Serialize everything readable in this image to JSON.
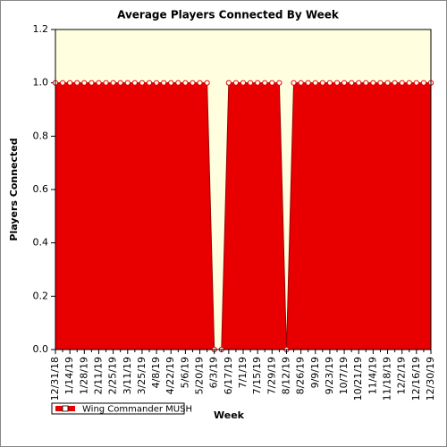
{
  "chart_data": {
    "type": "area",
    "title": "Average Players Connected By Week",
    "x_label": "Week",
    "y_label": "Players Connected",
    "categories": [
      "12/31/18",
      null,
      "1/14/19",
      null,
      "1/28/19",
      null,
      "2/11/19",
      null,
      "2/25/19",
      null,
      "3/11/19",
      null,
      "3/25/19",
      null,
      "4/8/19",
      null,
      "4/22/19",
      null,
      "5/6/19",
      null,
      "5/20/19",
      null,
      "6/3/19",
      null,
      "6/17/19",
      null,
      "7/1/19",
      null,
      "7/15/19",
      null,
      "7/29/19",
      null,
      "8/12/19",
      null,
      "8/26/19",
      null,
      "9/9/19",
      null,
      "9/23/19",
      null,
      "10/7/19",
      null,
      "10/21/19",
      null,
      "11/4/19",
      null,
      "11/18/19",
      null,
      "12/2/19",
      null,
      "12/16/19",
      null,
      "12/30/19"
    ],
    "series": [
      {
        "name": "Wing Commander MUSH",
        "color": "#e80000",
        "values": [
          1,
          1,
          1,
          1,
          1,
          1,
          1,
          1,
          1,
          1,
          1,
          1,
          1,
          1,
          1,
          1,
          1,
          1,
          1,
          1,
          1,
          1,
          0,
          0,
          1,
          1,
          1,
          1,
          1,
          1,
          1,
          1,
          0,
          1,
          1,
          1,
          1,
          1,
          1,
          1,
          1,
          1,
          1,
          1,
          1,
          1,
          1,
          1,
          1,
          1,
          1,
          1,
          1
        ]
      }
    ],
    "ylim": [
      0,
      1.2
    ],
    "yticks": [
      {
        "value": 0,
        "label": "0.0"
      },
      0.2,
      0.4,
      0.6,
      0.8,
      {
        "value": 1,
        "label": "1.0"
      },
      1.2
    ]
  }
}
